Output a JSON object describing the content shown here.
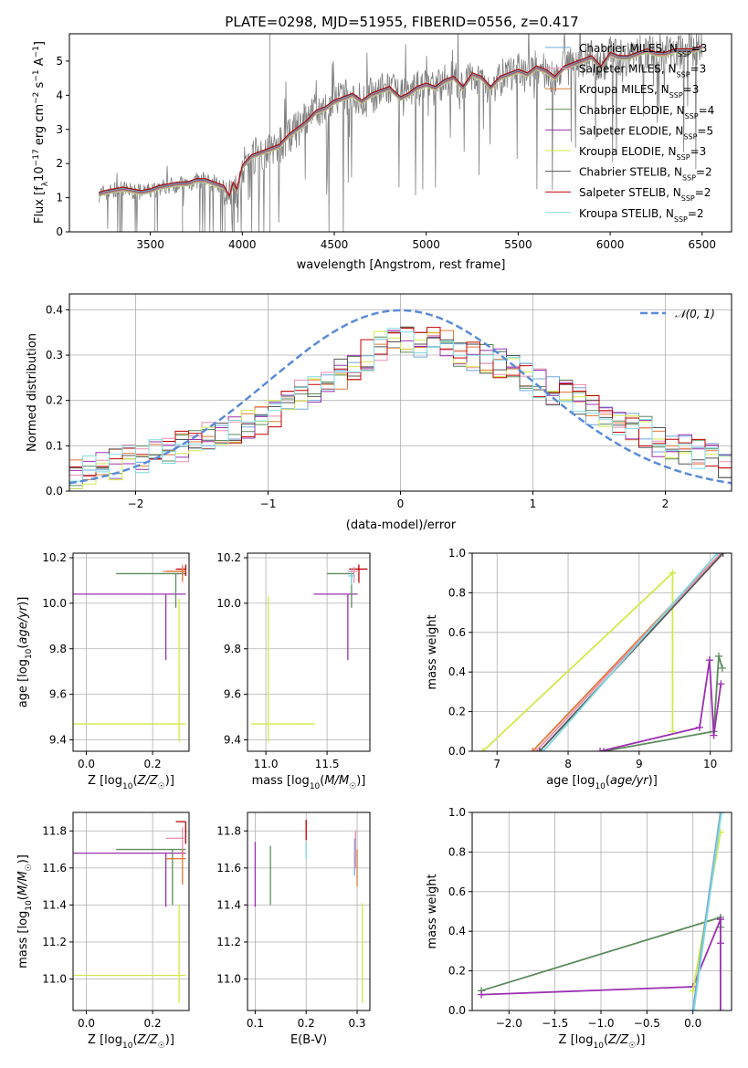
{
  "figure": {
    "title": "PLATE=0298, MJD=51955, FIBERID=0556, z=0.417"
  },
  "colors": {
    "Chabrier MILES": "#6fa8dc",
    "Salpeter MILES": "#e88fb0",
    "Kroupa MILES": "#e07b39",
    "Chabrier ELODIE": "#5d8a5d",
    "Salpeter ELODIE": "#9b30b0",
    "Kroupa ELODIE": "#d4e84a",
    "Chabrier STELIB": "#555555",
    "Salpeter STELIB": "#c00000",
    "Kroupa STELIB": "#7fd8e0",
    "data": "#808080",
    "normal": "#5b8bd8"
  },
  "chart_data": [
    {
      "id": "spectrum",
      "type": "line",
      "xlabel": "wavelength [Angstrom, rest frame]",
      "ylabel": "Flux [f_λ 10^-17 erg cm^-2 s^-1 A^-1]",
      "xlim": [
        3060,
        6660
      ],
      "ylim": [
        0,
        5.8
      ],
      "xticks": [
        3500,
        4000,
        4500,
        5000,
        5500,
        6000,
        6500
      ],
      "yticks": [
        0,
        1,
        2,
        3,
        4,
        5
      ],
      "grid": false,
      "legend_placement": "top-right",
      "legend": [
        {
          "name": "Chabrier MILES",
          "suffix": "=3"
        },
        {
          "name": "Salpeter MILES",
          "suffix": "=3"
        },
        {
          "name": "Kroupa MILES",
          "suffix": "=3"
        },
        {
          "name": "Chabrier ELODIE",
          "suffix": "=4"
        },
        {
          "name": "Salpeter ELODIE",
          "suffix": "=5"
        },
        {
          "name": "Kroupa ELODIE",
          "suffix": "=3"
        },
        {
          "name": "Chabrier STELIB",
          "suffix": "=2"
        },
        {
          "name": "Salpeter STELIB",
          "suffix": "=2"
        },
        {
          "name": "Kroupa STELIB",
          "suffix": "=2"
        }
      ],
      "model_x": [
        3220,
        3250,
        3300,
        3350,
        3400,
        3450,
        3500,
        3550,
        3600,
        3650,
        3700,
        3750,
        3800,
        3850,
        3900,
        3930,
        3950,
        3970,
        4000,
        4050,
        4100,
        4150,
        4200,
        4250,
        4300,
        4350,
        4400,
        4450,
        4500,
        4550,
        4600,
        4650,
        4700,
        4750,
        4800,
        4860,
        4900,
        4950,
        5000,
        5050,
        5100,
        5150,
        5200,
        5250,
        5300,
        5350,
        5400,
        5450,
        5500,
        5550,
        5600,
        5650,
        5700,
        5750,
        5800,
        5850,
        5900,
        5950,
        6000,
        6050,
        6100,
        6150,
        6200,
        6250,
        6300,
        6350,
        6400,
        6450,
        6500
      ],
      "model_y": [
        1.1,
        1.15,
        1.2,
        1.25,
        1.2,
        1.15,
        1.2,
        1.3,
        1.35,
        1.4,
        1.4,
        1.5,
        1.5,
        1.4,
        1.3,
        1.0,
        1.4,
        1.2,
        1.9,
        2.2,
        2.3,
        2.4,
        2.5,
        2.8,
        3.0,
        3.2,
        3.5,
        3.6,
        3.8,
        3.9,
        4.0,
        3.8,
        4.0,
        4.1,
        4.2,
        3.9,
        4.0,
        4.2,
        4.3,
        4.2,
        4.4,
        4.5,
        4.2,
        4.6,
        4.5,
        4.2,
        4.5,
        4.6,
        4.7,
        4.6,
        4.8,
        4.7,
        4.5,
        4.8,
        4.9,
        5.0,
        5.1,
        4.8,
        5.2,
        5.1,
        5.1,
        5.2,
        5.3,
        5.2,
        5.2,
        5.3,
        5.3,
        5.3,
        5.4
      ],
      "data_range_x": [
        3220,
        6500
      ]
    },
    {
      "id": "residuals",
      "type": "histogram",
      "xlabel": "(data-model)/error",
      "ylabel": "Normed distribution",
      "xlim": [
        -2.5,
        2.5
      ],
      "ylim": [
        0,
        0.435
      ],
      "xticks": [
        -2,
        -1,
        0,
        1,
        2
      ],
      "yticks": [
        0.0,
        0.1,
        0.2,
        0.3,
        0.4
      ],
      "grid": true,
      "legend_placement": "top-right",
      "legend": [
        {
          "name": "𝒩(0, 1)"
        }
      ],
      "bin_width": 0.1,
      "bin_start": -2.5,
      "base_hist": [
        0.04,
        0.05,
        0.06,
        0.06,
        0.07,
        0.07,
        0.08,
        0.09,
        0.1,
        0.11,
        0.12,
        0.13,
        0.14,
        0.15,
        0.16,
        0.17,
        0.19,
        0.21,
        0.22,
        0.24,
        0.26,
        0.28,
        0.3,
        0.32,
        0.33,
        0.34,
        0.33,
        0.34,
        0.32,
        0.31,
        0.3,
        0.29,
        0.28,
        0.27,
        0.25,
        0.24,
        0.22,
        0.21,
        0.2,
        0.18,
        0.17,
        0.15,
        0.14,
        0.13,
        0.11,
        0.1,
        0.09,
        0.08,
        0.07,
        0.06
      ]
    },
    {
      "id": "age-vs-Z",
      "type": "scatter",
      "xlabel": "Z [log10(Z/Z☉)]",
      "ylabel": "age [log10(age/yr)]",
      "xlim": [
        -0.04,
        0.31
      ],
      "ylim": [
        9.35,
        10.22
      ],
      "xticks": [
        0.0,
        0.2
      ],
      "yticks": [
        9.4,
        9.6,
        9.8,
        10.0,
        10.2
      ],
      "grid": true,
      "points": [
        {
          "series": "Salpeter ELODIE",
          "x": 0.24,
          "y": 10.04,
          "xerr": [
            0.3,
            0.06
          ],
          "yerr": [
            0.29,
            0.0
          ]
        },
        {
          "series": "Chabrier ELODIE",
          "x": 0.27,
          "y": 10.13,
          "xerr": [
            0.18,
            0.03
          ],
          "yerr": [
            0.15,
            0.0
          ]
        },
        {
          "series": "Kroupa ELODIE",
          "x": 0.28,
          "y": 9.47,
          "xerr": [
            0.32,
            0.02
          ],
          "yerr": [
            0.08,
            0.55
          ]
        },
        {
          "series": "Salpeter STELIB",
          "x": 0.3,
          "y": 10.15,
          "xerr": [
            0.03,
            0.0
          ],
          "yerr": [
            0.03,
            0.02
          ]
        },
        {
          "series": "Salpeter MILES",
          "x": 0.29,
          "y": 10.14,
          "xerr": [
            0.06,
            0.01
          ],
          "yerr": [
            0.05,
            0.03
          ]
        },
        {
          "series": "Kroupa MILES",
          "x": 0.29,
          "y": 10.14,
          "xerr": [
            0.05,
            0.01
          ],
          "yerr": [
            0.04,
            0.02
          ]
        }
      ]
    },
    {
      "id": "age-vs-mass",
      "type": "scatter",
      "xlabel": "mass [log10(M/M☉)]",
      "ylabel": "",
      "xlim": [
        10.85,
        11.85
      ],
      "ylim": [
        9.35,
        10.22
      ],
      "xticks": [
        11.0,
        11.5
      ],
      "yticks": [
        9.4,
        9.6,
        9.8,
        10.0,
        10.2
      ],
      "grid": true,
      "points": [
        {
          "series": "Salpeter ELODIE",
          "x": 11.67,
          "y": 10.04,
          "xerr": [
            0.28,
            0.08
          ],
          "yerr": [
            0.29,
            0.0
          ]
        },
        {
          "series": "Chabrier ELODIE",
          "x": 11.7,
          "y": 10.13,
          "xerr": [
            0.2,
            0.02
          ],
          "yerr": [
            0.15,
            0.0
          ]
        },
        {
          "series": "Kroupa ELODIE",
          "x": 11.02,
          "y": 9.47,
          "xerr": [
            0.14,
            0.38
          ],
          "yerr": [
            0.08,
            0.56
          ]
        },
        {
          "series": "Salpeter STELIB",
          "x": 11.76,
          "y": 10.15,
          "xerr": [
            0.08,
            0.07
          ],
          "yerr": [
            0.06,
            0.02
          ]
        },
        {
          "series": "Salpeter MILES",
          "x": 11.72,
          "y": 10.14,
          "xerr": [
            0.05,
            0.04
          ],
          "yerr": [
            0.05,
            0.02
          ]
        },
        {
          "series": "Kroupa STELIB",
          "x": 11.7,
          "y": 10.12,
          "xerr": [
            0.03,
            0.03
          ],
          "yerr": [
            0.04,
            0.03
          ]
        }
      ]
    },
    {
      "id": "weight-vs-age",
      "type": "line",
      "xlabel": "age  [log10(age/yr)]",
      "ylabel": "mass weight",
      "xlim": [
        6.65,
        10.3
      ],
      "ylim": [
        0,
        1.0
      ],
      "xticks": [
        7,
        8,
        9,
        10
      ],
      "yticks": [
        0.0,
        0.2,
        0.4,
        0.6,
        0.8,
        1.0
      ],
      "grid": true,
      "series": [
        {
          "name": "Kroupa ELODIE",
          "x": [
            6.8,
            9.47,
            9.47
          ],
          "y": [
            0.0,
            0.9,
            0.1
          ]
        },
        {
          "name": "Kroupa MILES",
          "x": [
            7.5,
            10.15
          ],
          "y": [
            0.0,
            1.0
          ]
        },
        {
          "name": "Salpeter MILES",
          "x": [
            7.55,
            10.15
          ],
          "y": [
            0.0,
            1.0
          ]
        },
        {
          "name": "Chabrier STELIB",
          "x": [
            7.6,
            10.18
          ],
          "y": [
            0.0,
            1.0
          ]
        },
        {
          "name": "Kroupa STELIB",
          "x": [
            7.65,
            10.1
          ],
          "y": [
            0.0,
            1.0
          ]
        },
        {
          "name": "Chabrier ELODIE",
          "x": [
            8.5,
            10.05,
            10.12,
            10.17
          ],
          "y": [
            0.0,
            0.1,
            0.48,
            0.42
          ]
        },
        {
          "name": "Salpeter ELODIE",
          "x": [
            8.45,
            9.85,
            9.99,
            10.05,
            10.15
          ],
          "y": [
            0.0,
            0.12,
            0.46,
            0.08,
            0.34
          ]
        }
      ]
    },
    {
      "id": "mass-vs-Z",
      "type": "scatter",
      "xlabel": "Z [log10(Z/Z☉)]",
      "ylabel": "mass [log10(M/M☉)]",
      "xlim": [
        -0.04,
        0.31
      ],
      "ylim": [
        10.83,
        11.9
      ],
      "xticks": [
        0.0,
        0.2
      ],
      "yticks": [
        11.0,
        11.2,
        11.4,
        11.6,
        11.8
      ],
      "grid": true,
      "points": [
        {
          "series": "Salpeter ELODIE",
          "x": 0.24,
          "y": 11.68,
          "xerr": [
            0.3,
            0.06
          ],
          "yerr": [
            0.29,
            0.0
          ]
        },
        {
          "series": "Chabrier ELODIE",
          "x": 0.26,
          "y": 11.7,
          "xerr": [
            0.17,
            0.04
          ],
          "yerr": [
            0.3,
            0.0
          ]
        },
        {
          "series": "Kroupa ELODIE",
          "x": 0.28,
          "y": 11.02,
          "xerr": [
            0.32,
            0.02
          ],
          "yerr": [
            0.15,
            0.38
          ]
        },
        {
          "series": "Salpeter STELIB",
          "x": 0.3,
          "y": 11.85,
          "xerr": [
            0.03,
            0.0
          ],
          "yerr": [
            0.12,
            0.0
          ]
        },
        {
          "series": "Salpeter MILES",
          "x": 0.29,
          "y": 11.76,
          "xerr": [
            0.05,
            0.01
          ],
          "yerr": [
            0.1,
            0.06
          ]
        },
        {
          "series": "Kroupa MILES",
          "x": 0.29,
          "y": 11.65,
          "xerr": [
            0.05,
            0.01
          ],
          "yerr": [
            0.14,
            0.05
          ]
        }
      ]
    },
    {
      "id": "mass-vs-EBV",
      "type": "scatter",
      "xlabel": "E(B-V)",
      "ylabel": "",
      "xlim": [
        0.085,
        0.325
      ],
      "ylim": [
        10.83,
        11.9
      ],
      "xticks": [
        0.1,
        0.2,
        0.3
      ],
      "yticks": [
        11.0,
        11.2,
        11.4,
        11.6,
        11.8
      ],
      "grid": true,
      "points": [
        {
          "series": "Salpeter ELODIE",
          "x": 0.1,
          "y": 11.57,
          "yerr": [
            0.18,
            0.17
          ]
        },
        {
          "series": "Chabrier ELODIE",
          "x": 0.13,
          "y": 11.56,
          "yerr": [
            0.16,
            0.16
          ]
        },
        {
          "series": "Salpeter STELIB",
          "x": 0.2,
          "y": 11.8,
          "yerr": [
            0.05,
            0.06
          ]
        },
        {
          "series": "Kroupa STELIB",
          "x": 0.2,
          "y": 11.7,
          "yerr": [
            0.05,
            0.04
          ]
        },
        {
          "series": "Chabrier MILES",
          "x": 0.295,
          "y": 11.66,
          "yerr": [
            0.1,
            0.1
          ]
        },
        {
          "series": "Salpeter MILES",
          "x": 0.297,
          "y": 11.7,
          "yerr": [
            0.1,
            0.1
          ]
        },
        {
          "series": "Kroupa MILES",
          "x": 0.3,
          "y": 11.6,
          "yerr": [
            0.1,
            0.1
          ]
        },
        {
          "series": "Kroupa ELODIE",
          "x": 0.31,
          "y": 11.1,
          "yerr": [
            0.23,
            0.31
          ]
        }
      ]
    },
    {
      "id": "weight-vs-Z",
      "type": "line",
      "xlabel": "Z [log10(Z/Z☉)]",
      "ylabel": "mass weight",
      "xlim": [
        -2.4,
        0.42
      ],
      "ylim": [
        0,
        1.0
      ],
      "xticks": [
        -2.0,
        -1.5,
        -1.0,
        -0.5,
        0.0
      ],
      "yticks": [
        0.0,
        0.2,
        0.4,
        0.6,
        0.8,
        1.0
      ],
      "grid": true,
      "series": [
        {
          "name": "Chabrier ELODIE",
          "x": [
            -2.3,
            0.3,
            0.3
          ],
          "y": [
            0.1,
            0.47,
            0.42
          ]
        },
        {
          "name": "Salpeter ELODIE",
          "x": [
            -2.3,
            0.0,
            0.3,
            0.3,
            0.3
          ],
          "y": [
            0.08,
            0.12,
            0.46,
            0.34,
            0.0
          ]
        },
        {
          "name": "Kroupa ELODIE",
          "x": [
            0.0,
            0.3
          ],
          "y": [
            0.1,
            0.9
          ]
        },
        {
          "name": "Kroupa MILES",
          "x": [
            0.0,
            0.3
          ],
          "y": [
            0.0,
            1.0
          ]
        },
        {
          "name": "Chabrier MILES",
          "x": [
            0.0,
            0.3
          ],
          "y": [
            0.0,
            1.0
          ]
        },
        {
          "name": "Kroupa STELIB",
          "x": [
            0.01,
            0.31
          ],
          "y": [
            0.0,
            1.0
          ]
        }
      ]
    }
  ]
}
